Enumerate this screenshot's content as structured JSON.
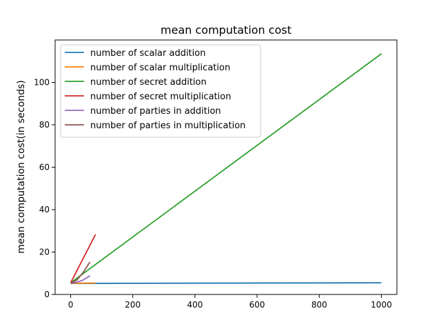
{
  "chart_data": {
    "type": "line",
    "title": "mean computation cost",
    "xlabel": "",
    "ylabel": "mean computation cost(in seconds)",
    "xlim": [
      -50,
      1050
    ],
    "ylim": [
      0,
      120
    ],
    "xticks": [
      0,
      200,
      400,
      600,
      800,
      1000
    ],
    "yticks": [
      0,
      20,
      40,
      60,
      80,
      100
    ],
    "grid": false,
    "legend_position": "upper-left",
    "series": [
      {
        "name": "number of scalar addition",
        "color": "#1f77b4",
        "x": [
          0,
          1000
        ],
        "y": [
          5.2,
          5.5
        ]
      },
      {
        "name": "number of scalar multiplication",
        "color": "#ff7f0e",
        "x": [
          0,
          80
        ],
        "y": [
          5.3,
          5.4
        ]
      },
      {
        "name": "number of secret addition",
        "color": "#2ca02c",
        "x": [
          0,
          1000
        ],
        "y": [
          5.5,
          113.5
        ]
      },
      {
        "name": "number of secret multiplication",
        "color": "#d62728",
        "x": [
          0,
          80
        ],
        "y": [
          5.5,
          28.3
        ]
      },
      {
        "name": "number of parties in addition",
        "color": "#9467bd",
        "x": [
          0,
          20,
          40,
          62
        ],
        "y": [
          5.3,
          5.8,
          6.8,
          8.8
        ]
      },
      {
        "name": "number of parties in multiplication",
        "color": "#8c564b",
        "x": [
          0,
          20,
          40,
          62
        ],
        "y": [
          5.3,
          6.8,
          10.3,
          15.3
        ]
      }
    ]
  }
}
